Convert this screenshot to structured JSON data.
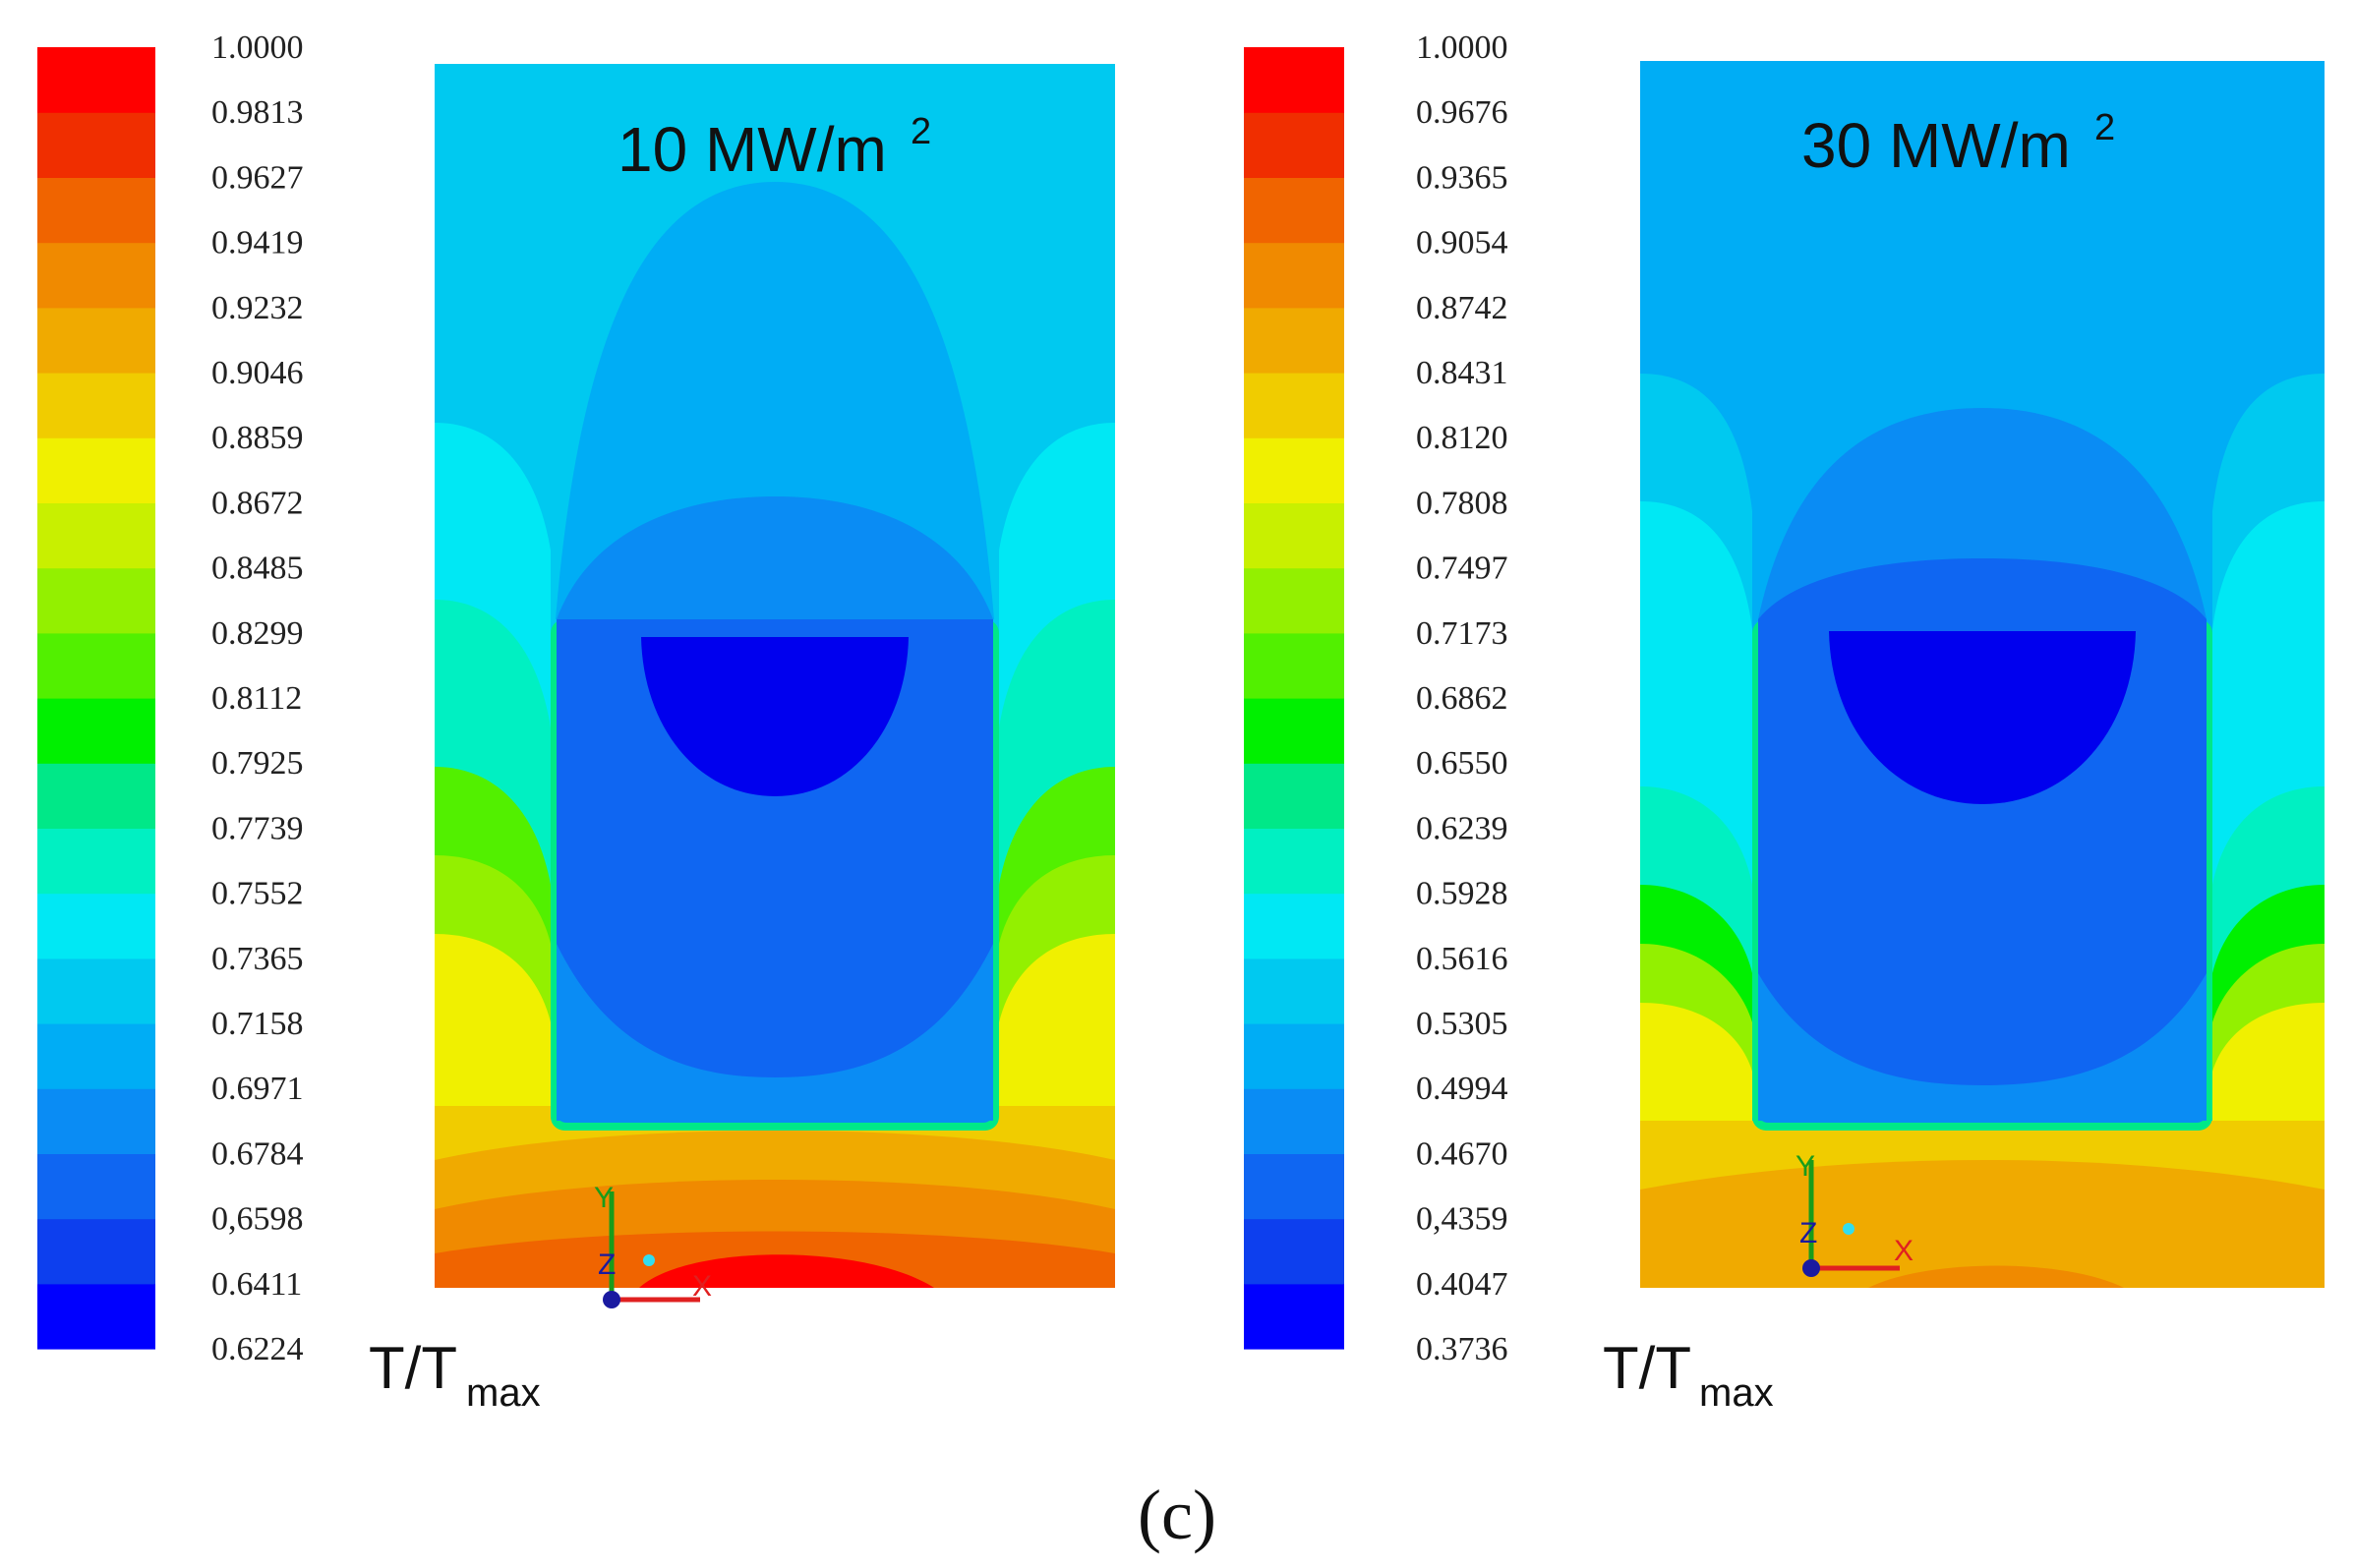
{
  "colors": {
    "scale": [
      "#0000ff",
      "#0d3fee",
      "#0f66f2",
      "#0a8cf4",
      "#00adf5",
      "#00c9f0",
      "#00e8f4",
      "#00f0c2",
      "#00e888",
      "#00f000",
      "#52f000",
      "#93f000",
      "#c8f000",
      "#f0f000",
      "#f0cc00",
      "#f0aa00",
      "#f08a00",
      "#f06400",
      "#f02e00",
      "#ff0000"
    ]
  },
  "panels": [
    {
      "id": "left",
      "title_main": "10 MW/m",
      "title_sup": "2",
      "quantity_main": "T/T",
      "quantity_sub": "max",
      "scale_labels": [
        "1.0000",
        "0.9813",
        "0.9627",
        "0.9419",
        "0.9232",
        "0.9046",
        "0.8859",
        "0.8672",
        "0.8485",
        "0.8299",
        "0.8112",
        "0.7925",
        "0.7739",
        "0.7552",
        "0.7365",
        "0.7158",
        "0.6971",
        "0.6784",
        "0,6598",
        "0.6411",
        "0.6224"
      ],
      "axis_labels": {
        "y": "Y",
        "z": "Z",
        "x": "X"
      }
    },
    {
      "id": "right",
      "title_main": "30 MW/m",
      "title_sup": "2",
      "quantity_main": "T/T",
      "quantity_sub": "max",
      "scale_labels": [
        "1.0000",
        "0.9676",
        "0.9365",
        "0.9054",
        "0.8742",
        "0.8431",
        "0.8120",
        "0.7808",
        "0.7497",
        "0.7173",
        "0.6862",
        "0.6550",
        "0.6239",
        "0.5928",
        "0.5616",
        "0.5305",
        "0.4994",
        "0.4670",
        "0,4359",
        "0.4047",
        "0.3736"
      ],
      "axis_labels": {
        "y": "Y",
        "z": "Z",
        "x": "X"
      }
    }
  ],
  "caption": "(c)"
}
